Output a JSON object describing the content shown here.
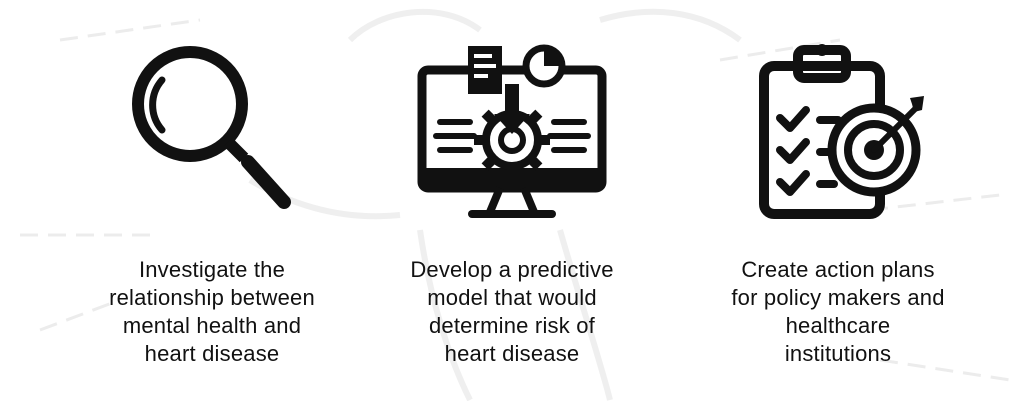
{
  "items": [
    {
      "icon": "magnifying-glass-icon",
      "caption": "Investigate the\nrelationship between\nmental health and\nheart disease"
    },
    {
      "icon": "computer-model-icon",
      "caption": "Develop a predictive\nmodel that would\ndetermine risk of\nheart disease"
    },
    {
      "icon": "clipboard-target-icon",
      "caption": "Create action plans\nfor policy makers and\nhealthcare\ninstitutions"
    }
  ],
  "colors": {
    "icon": "#111111",
    "text": "#111111",
    "watermark": "#ebebeb"
  }
}
